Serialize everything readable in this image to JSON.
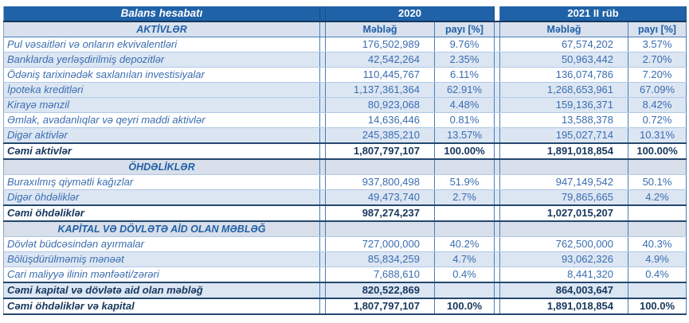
{
  "header": {
    "title": "Balans hesabatı",
    "year_2020": "2020",
    "year_2021": "2021 II rüb",
    "amount_label": "Məbləğ",
    "share_label": "payı [%]"
  },
  "subheader": {
    "section_label": "AKTİVLƏR"
  },
  "rows": [
    {
      "type": "data",
      "shade": "white",
      "label": "Pul vəsaitləri və onların ekvivalentləri",
      "v2020": "176,502,989",
      "p2020": "9.76%",
      "v2021": "67,574,202",
      "p2021": "3.57%"
    },
    {
      "type": "data",
      "shade": "blue",
      "label": "Banklarda yerləşdirilmiş depozitlər",
      "v2020": "42,542,264",
      "p2020": "2.35%",
      "v2021": "50,963,442",
      "p2021": "2.70%"
    },
    {
      "type": "data",
      "shade": "white",
      "label": "Ödəniş tarixinədək saxlanılan investisiyalar",
      "v2020": "110,445,767",
      "p2020": "6.11%",
      "v2021": "136,074,786",
      "p2021": "7.20%"
    },
    {
      "type": "data",
      "shade": "blue",
      "label": "İpoteka kreditləri",
      "v2020": "1,137,361,364",
      "p2020": "62.91%",
      "v2021": "1,268,653,961",
      "p2021": "67.09%"
    },
    {
      "type": "data",
      "shade": "blue",
      "label": "Kirayə mənzil",
      "v2020": "80,923,068",
      "p2020": "4.48%",
      "v2021": "159,136,371",
      "p2021": "8.42%"
    },
    {
      "type": "data",
      "shade": "white",
      "label": "Əmlak, avadanlıqlar və qeyri maddi aktivlər",
      "v2020": "14,636,446",
      "p2020": "0.81%",
      "v2021": "13,588,378",
      "p2021": "0.72%"
    },
    {
      "type": "data",
      "shade": "blue",
      "label": "Digər aktivlər",
      "v2020": "245,385,210",
      "p2020": "13.57%",
      "v2021": "195,027,714",
      "p2021": "10.31%"
    },
    {
      "type": "total",
      "shade": "white",
      "label": "Cəmi aktivlər",
      "v2020": "1,807,797,107",
      "p2020": "100.00%",
      "v2021": "1,891,018,854",
      "p2021": "100.00%"
    },
    {
      "type": "section",
      "shade": "section",
      "label": "ÖHDƏLİKLƏR",
      "v2020": "",
      "p2020": "",
      "v2021": "",
      "p2021": ""
    },
    {
      "type": "data",
      "shade": "white",
      "label": "Buraxılmış qiymətli kağızlar",
      "v2020": "937,800,498",
      "p2020": "51.9%",
      "v2021": "947,149,542",
      "p2021": "50.1%"
    },
    {
      "type": "data",
      "shade": "blue",
      "label": "Digər öhdəliklər",
      "v2020": "49,473,740",
      "p2020": "2.7%",
      "v2021": "79,865,665",
      "p2021": "4.2%"
    },
    {
      "type": "total",
      "shade": "white",
      "label": "Cəmi öhdəliklər",
      "v2020": "987,274,237",
      "p2020": "",
      "v2021": "1,027,015,207",
      "p2021": ""
    },
    {
      "type": "section",
      "shade": "section",
      "label": "KAPİTAL VƏ DÖVLƏTƏ AİD OLAN MƏBLƏĞ",
      "v2020": "",
      "p2020": "",
      "v2021": "",
      "p2021": ""
    },
    {
      "type": "data",
      "shade": "white",
      "label": "Dövlət büdcəsindən ayırmalar",
      "v2020": "727,000,000",
      "p2020": "40.2%",
      "v2021": "762,500,000",
      "p2021": "40.3%"
    },
    {
      "type": "data",
      "shade": "blue",
      "label": "Bölüşdürülməmiş mənəət",
      "v2020": "85,834,259",
      "p2020": "4.7%",
      "v2021": "93,062,326",
      "p2021": "4.9%"
    },
    {
      "type": "data",
      "shade": "white",
      "label": "Cari maliyyə ilinin mənfəəti/zərəri",
      "v2020": "7,688,610",
      "p2020": "0.4%",
      "v2021": "8,441,320",
      "p2021": "0.4%"
    },
    {
      "type": "total",
      "shade": "blue",
      "label": "Cəmi kapital və dövlətə aid olan məbləğ",
      "v2020": "820,522,869",
      "p2020": "",
      "v2021": "864,003,647",
      "p2021": ""
    },
    {
      "type": "total",
      "shade": "white",
      "label": "Cəmi öhdəliklər və kapital",
      "v2020": "1,807,797,107",
      "p2020": "100.0%",
      "v2021": "1,891,018,854",
      "p2021": "100.0%"
    }
  ],
  "colors": {
    "header_bg": "#2062A8",
    "header_text": "#FFFFFF",
    "header_dark_border": "#17375E",
    "subheader_bg": "#D8E1ED",
    "section_bg": "#D8DFEA",
    "section_text": "#2160A8",
    "zebra_row_bg": "#DCE6F3",
    "body_text": "#3A6DB0",
    "total_text": "#17375E",
    "vertical_border": "#4A7CB8",
    "horizontal_border": "#AFC7E4"
  }
}
